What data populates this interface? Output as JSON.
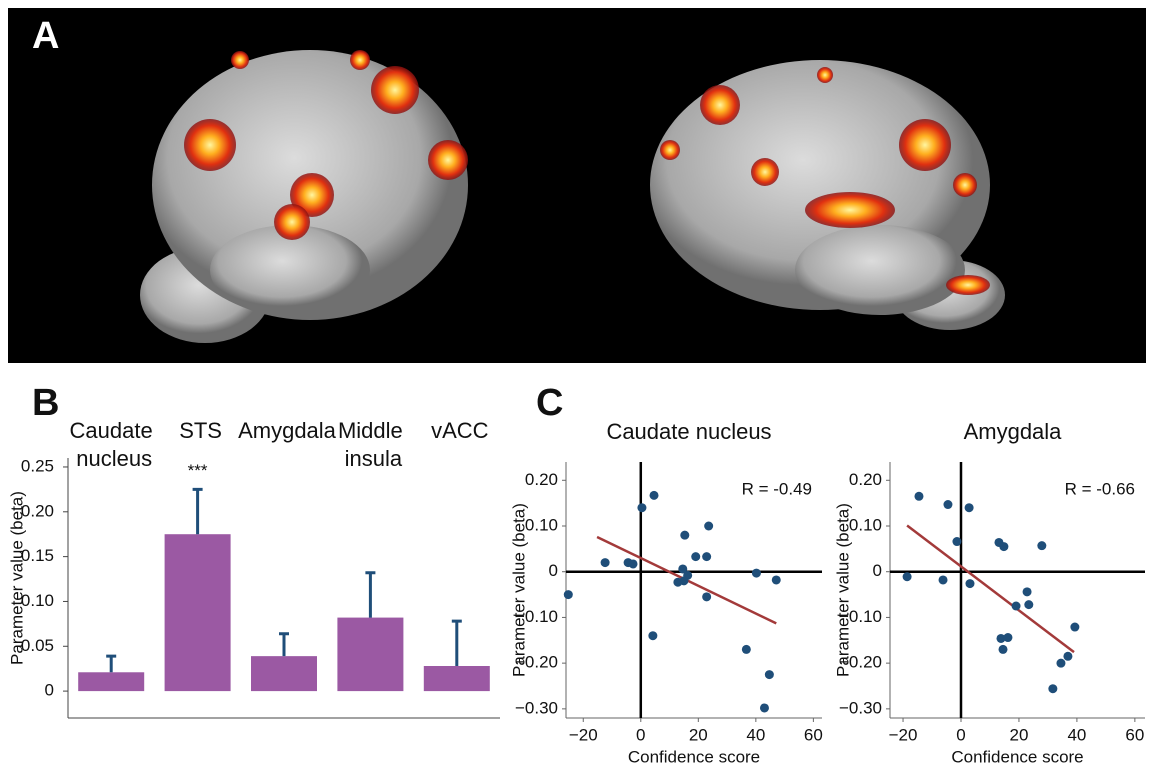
{
  "panel_labels": [
    "A",
    "B",
    "C"
  ],
  "chart_data": [
    {
      "type": "bar",
      "categories": [
        "Caudate nucleus",
        "STS",
        "Amygdala",
        "Middle insula",
        "vACC"
      ],
      "values": [
        0.021,
        0.175,
        0.039,
        0.082,
        0.028
      ],
      "errors": [
        0.018,
        0.05,
        0.025,
        0.05,
        0.05
      ],
      "significance": [
        null,
        "***",
        null,
        null,
        null
      ],
      "color": "#9b59a3",
      "error_color": "#1f4e79",
      "ylabel": "Parameter value (beta)",
      "ylim": [
        -0.03,
        0.26
      ],
      "yticks": [
        0,
        0.05,
        {
          "value": 0.1,
          "label": "0.10"
        },
        0.15,
        {
          "value": 0.2,
          "label": "0.20"
        },
        0.25
      ]
    },
    {
      "type": "scatter",
      "title": "Caudate nucleus",
      "annotation": "R = -0.49",
      "xlabel": "Confidence score",
      "ylabel": "Parameter value (beta)",
      "x": [
        -25.2,
        -12.4,
        -4.4,
        -2.7,
        0.4,
        4.6,
        4.2,
        15.3,
        14.6,
        15,
        16.3,
        19.1,
        22.9,
        23.6,
        22.9,
        12.9,
        40.2,
        47.1,
        36.7,
        44.7,
        43
      ],
      "values": [
        -0.05,
        0.02,
        0.02,
        0.017,
        0.14,
        0.167,
        -0.14,
        0.08,
        0.006,
        -0.02,
        -0.008,
        0.033,
        0.033,
        0.1,
        -0.055,
        -0.023,
        -0.003,
        -0.018,
        -0.17,
        -0.225,
        -0.298
      ],
      "color": "#1f4e79",
      "trend": {
        "x": [
          -15.2,
          47.1
        ],
        "values": [
          0.076,
          -0.113
        ],
        "color": "#a33a3a"
      },
      "xlim": [
        -26,
        63
      ],
      "ylim": [
        -0.32,
        0.24
      ],
      "xticks": [
        {
          "value": -20,
          "label": "−20"
        },
        0,
        20,
        40,
        60
      ],
      "yticks": [
        {
          "value": 0.2,
          "label": "0.20"
        },
        {
          "value": 0.1,
          "label": "0.10"
        },
        0,
        {
          "value": -0.1,
          "label": "−0.10"
        },
        {
          "value": -0.2,
          "label": "−0.20"
        },
        {
          "value": -0.3,
          "label": "−0.30"
        }
      ]
    },
    {
      "type": "scatter",
      "title": "Amygdala",
      "annotation": "R = -0.66",
      "xlabel": "Confidence score",
      "ylabel": "Parameter value (beta)",
      "x": [
        -18.6,
        -14.5,
        -6.2,
        -4.5,
        -1.4,
        2.8,
        3.1,
        13.1,
        14.8,
        13.8,
        14.5,
        16.2,
        19,
        22.8,
        23.4,
        27.9,
        31.7,
        34.5,
        36.9,
        39.3
      ],
      "values": [
        -0.011,
        0.165,
        -0.018,
        0.147,
        0.066,
        0.14,
        -0.026,
        0.064,
        0.055,
        -0.146,
        -0.17,
        -0.144,
        -0.075,
        -0.044,
        -0.072,
        0.057,
        -0.256,
        -0.2,
        -0.185,
        -0.121
      ],
      "color": "#1f4e79",
      "trend": {
        "x": [
          -18.6,
          39
        ],
        "values": [
          0.101,
          -0.176
        ],
        "color": "#a33a3a"
      },
      "xlim": [
        -24.5,
        63.5
      ],
      "ylim": [
        -0.32,
        0.24
      ],
      "xticks": [
        {
          "value": -20,
          "label": "−20"
        },
        0,
        20,
        40,
        60
      ],
      "yticks": [
        {
          "value": 0.2,
          "label": "0.20"
        },
        {
          "value": 0.1,
          "label": "0.10"
        },
        0,
        {
          "value": -0.1,
          "label": "−0.10"
        },
        {
          "value": -0.2,
          "label": "−0.20"
        },
        {
          "value": -0.3,
          "label": "−0.30"
        }
      ]
    }
  ]
}
